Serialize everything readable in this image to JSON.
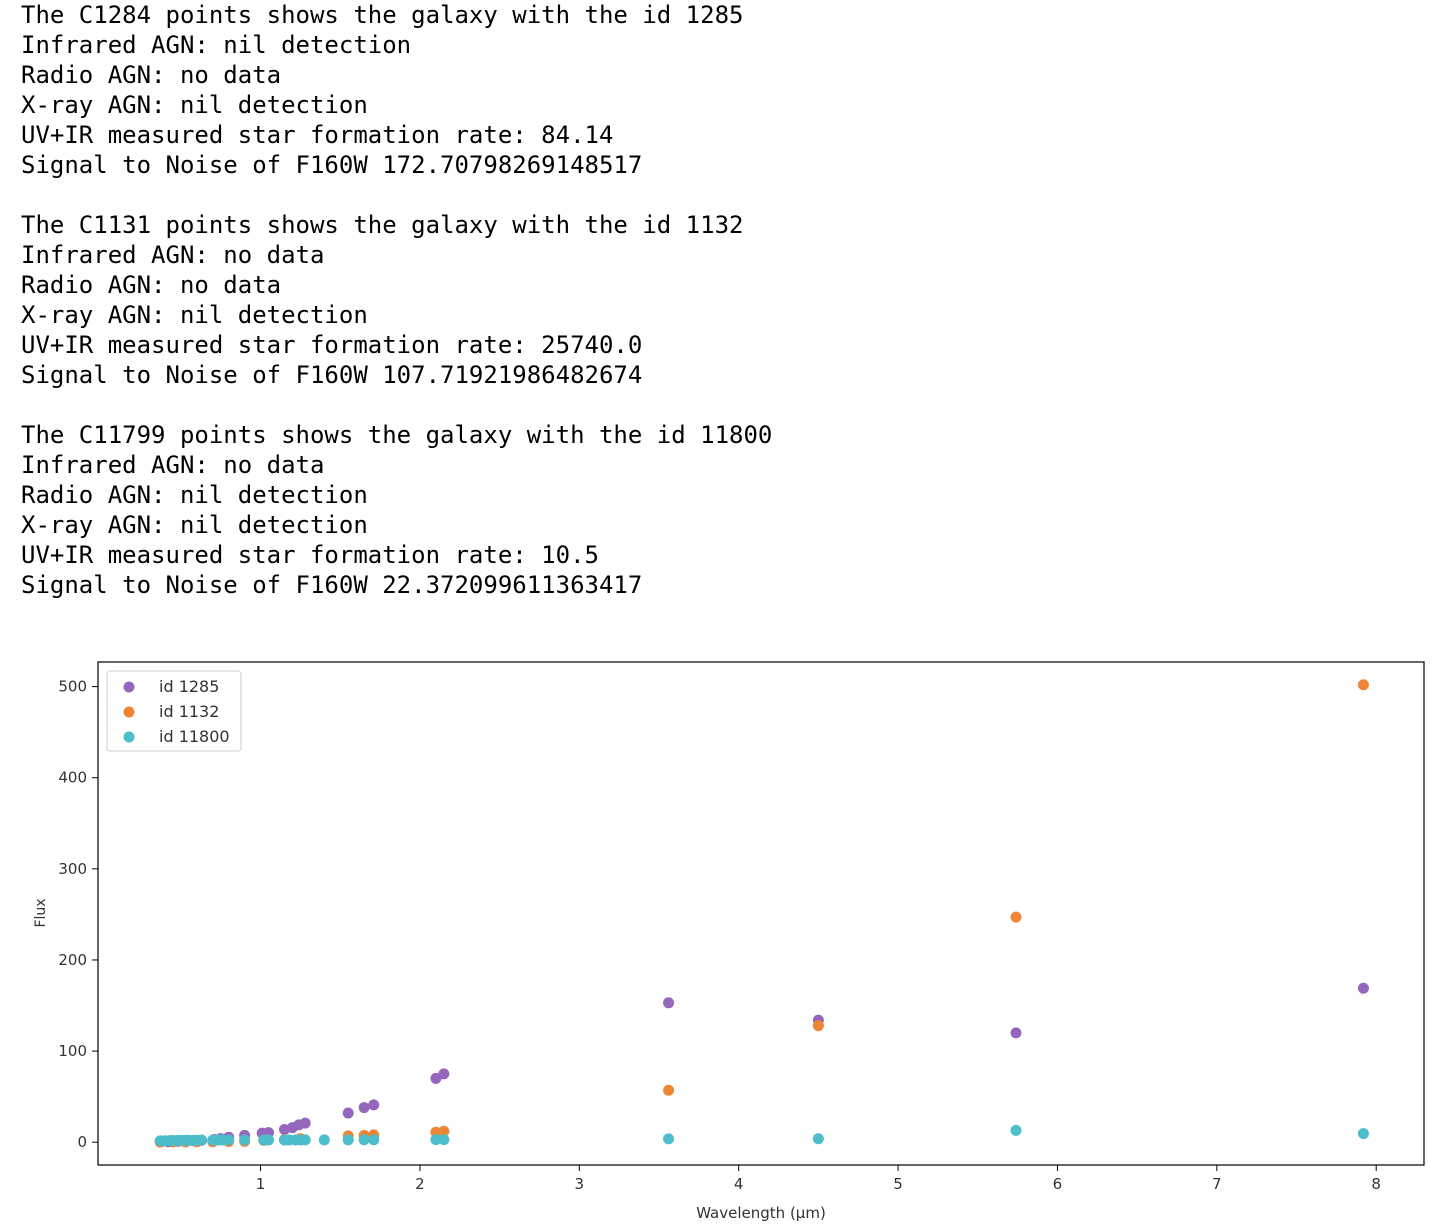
{
  "output_blocks": [
    {
      "lines": [
        "The C1284 points shows the galaxy with the id 1285",
        "Infrared AGN: nil detection",
        "Radio AGN: no data",
        "X-ray AGN: nil detection",
        "UV+IR measured star formation rate: 84.14",
        "Signal to Noise of F160W 172.70798269148517"
      ]
    },
    {
      "lines": [
        "The C1131 points shows the galaxy with the id 1132",
        "Infrared AGN: no data",
        "Radio AGN: no data",
        "X-ray AGN: nil detection",
        "UV+IR measured star formation rate: 25740.0",
        "Signal to Noise of F160W 107.71921986482674"
      ]
    },
    {
      "lines": [
        "The C11799 points shows the galaxy with the id 11800",
        "Infrared AGN: no data",
        "Radio AGN: nil detection",
        "X-ray AGN: nil detection",
        "UV+IR measured star formation rate: 10.5",
        "Signal to Noise of F160W 22.372099611363417"
      ]
    }
  ],
  "chart_data": {
    "type": "scatter",
    "title": "",
    "xlabel": "Wavelength (μm)",
    "ylabel": "Flux",
    "xlim": [
      -0.02,
      8.3
    ],
    "ylim": [
      -25,
      527
    ],
    "xticks": [
      1,
      2,
      3,
      4,
      5,
      6,
      7,
      8
    ],
    "yticks": [
      0,
      100,
      200,
      300,
      400,
      500
    ],
    "grid": false,
    "legend_position": "top-left",
    "series": [
      {
        "name": "id 1285",
        "color": "#9467bd",
        "points": [
          [
            0.37,
            0.3
          ],
          [
            0.42,
            0.5
          ],
          [
            0.45,
            0.8
          ],
          [
            0.48,
            1.0
          ],
          [
            0.53,
            1.2
          ],
          [
            0.58,
            1.6
          ],
          [
            0.63,
            2.0
          ],
          [
            0.71,
            3.0
          ],
          [
            0.75,
            4.0
          ],
          [
            0.8,
            5.5
          ],
          [
            0.9,
            7.5
          ],
          [
            1.01,
            10.0
          ],
          [
            1.05,
            10.5
          ],
          [
            1.15,
            14.0
          ],
          [
            1.2,
            16.0
          ],
          [
            1.24,
            19.0
          ],
          [
            1.28,
            21.0
          ],
          [
            1.55,
            32.0
          ],
          [
            1.65,
            38.0
          ],
          [
            1.71,
            41.0
          ],
          [
            2.1,
            70.0
          ],
          [
            2.15,
            75.0
          ],
          [
            3.56,
            153.0
          ],
          [
            4.5,
            134.0
          ],
          [
            5.74,
            120.0
          ],
          [
            7.92,
            169.0
          ]
        ]
      },
      {
        "name": "id 1132",
        "color": "#ee8535",
        "points": [
          [
            0.37,
            0.1
          ],
          [
            0.45,
            0.2
          ],
          [
            0.53,
            0.3
          ],
          [
            0.6,
            0.4
          ],
          [
            0.7,
            0.5
          ],
          [
            0.8,
            0.8
          ],
          [
            0.9,
            1.0
          ],
          [
            1.02,
            2.0
          ],
          [
            1.15,
            3.0
          ],
          [
            1.25,
            4.0
          ],
          [
            1.55,
            7.0
          ],
          [
            1.65,
            7.5
          ],
          [
            1.71,
            8.0
          ],
          [
            2.1,
            11.0
          ],
          [
            2.15,
            12.0
          ],
          [
            3.56,
            57.0
          ],
          [
            4.5,
            128.0
          ],
          [
            5.74,
            247.0
          ],
          [
            7.92,
            502.0
          ]
        ]
      },
      {
        "name": "id 11800",
        "color": "#4bbdcb",
        "points": [
          [
            0.37,
            1.5
          ],
          [
            0.4,
            1.6
          ],
          [
            0.43,
            1.8
          ],
          [
            0.45,
            1.9
          ],
          [
            0.48,
            2.0
          ],
          [
            0.5,
            2.0
          ],
          [
            0.53,
            2.1
          ],
          [
            0.55,
            2.1
          ],
          [
            0.58,
            2.2
          ],
          [
            0.6,
            2.2
          ],
          [
            0.63,
            2.3
          ],
          [
            0.7,
            2.3
          ],
          [
            0.73,
            2.4
          ],
          [
            0.76,
            2.4
          ],
          [
            0.8,
            2.4
          ],
          [
            0.9,
            2.5
          ],
          [
            1.02,
            2.5
          ],
          [
            1.05,
            2.5
          ],
          [
            1.15,
            2.5
          ],
          [
            1.18,
            2.5
          ],
          [
            1.22,
            2.5
          ],
          [
            1.25,
            2.5
          ],
          [
            1.28,
            2.6
          ],
          [
            1.4,
            2.6
          ],
          [
            1.55,
            2.6
          ],
          [
            1.65,
            2.7
          ],
          [
            1.71,
            2.7
          ],
          [
            2.1,
            2.8
          ],
          [
            2.15,
            2.9
          ],
          [
            3.56,
            3.7
          ],
          [
            4.5,
            3.8
          ],
          [
            5.74,
            13.0
          ],
          [
            7.92,
            9.5
          ]
        ]
      }
    ]
  }
}
